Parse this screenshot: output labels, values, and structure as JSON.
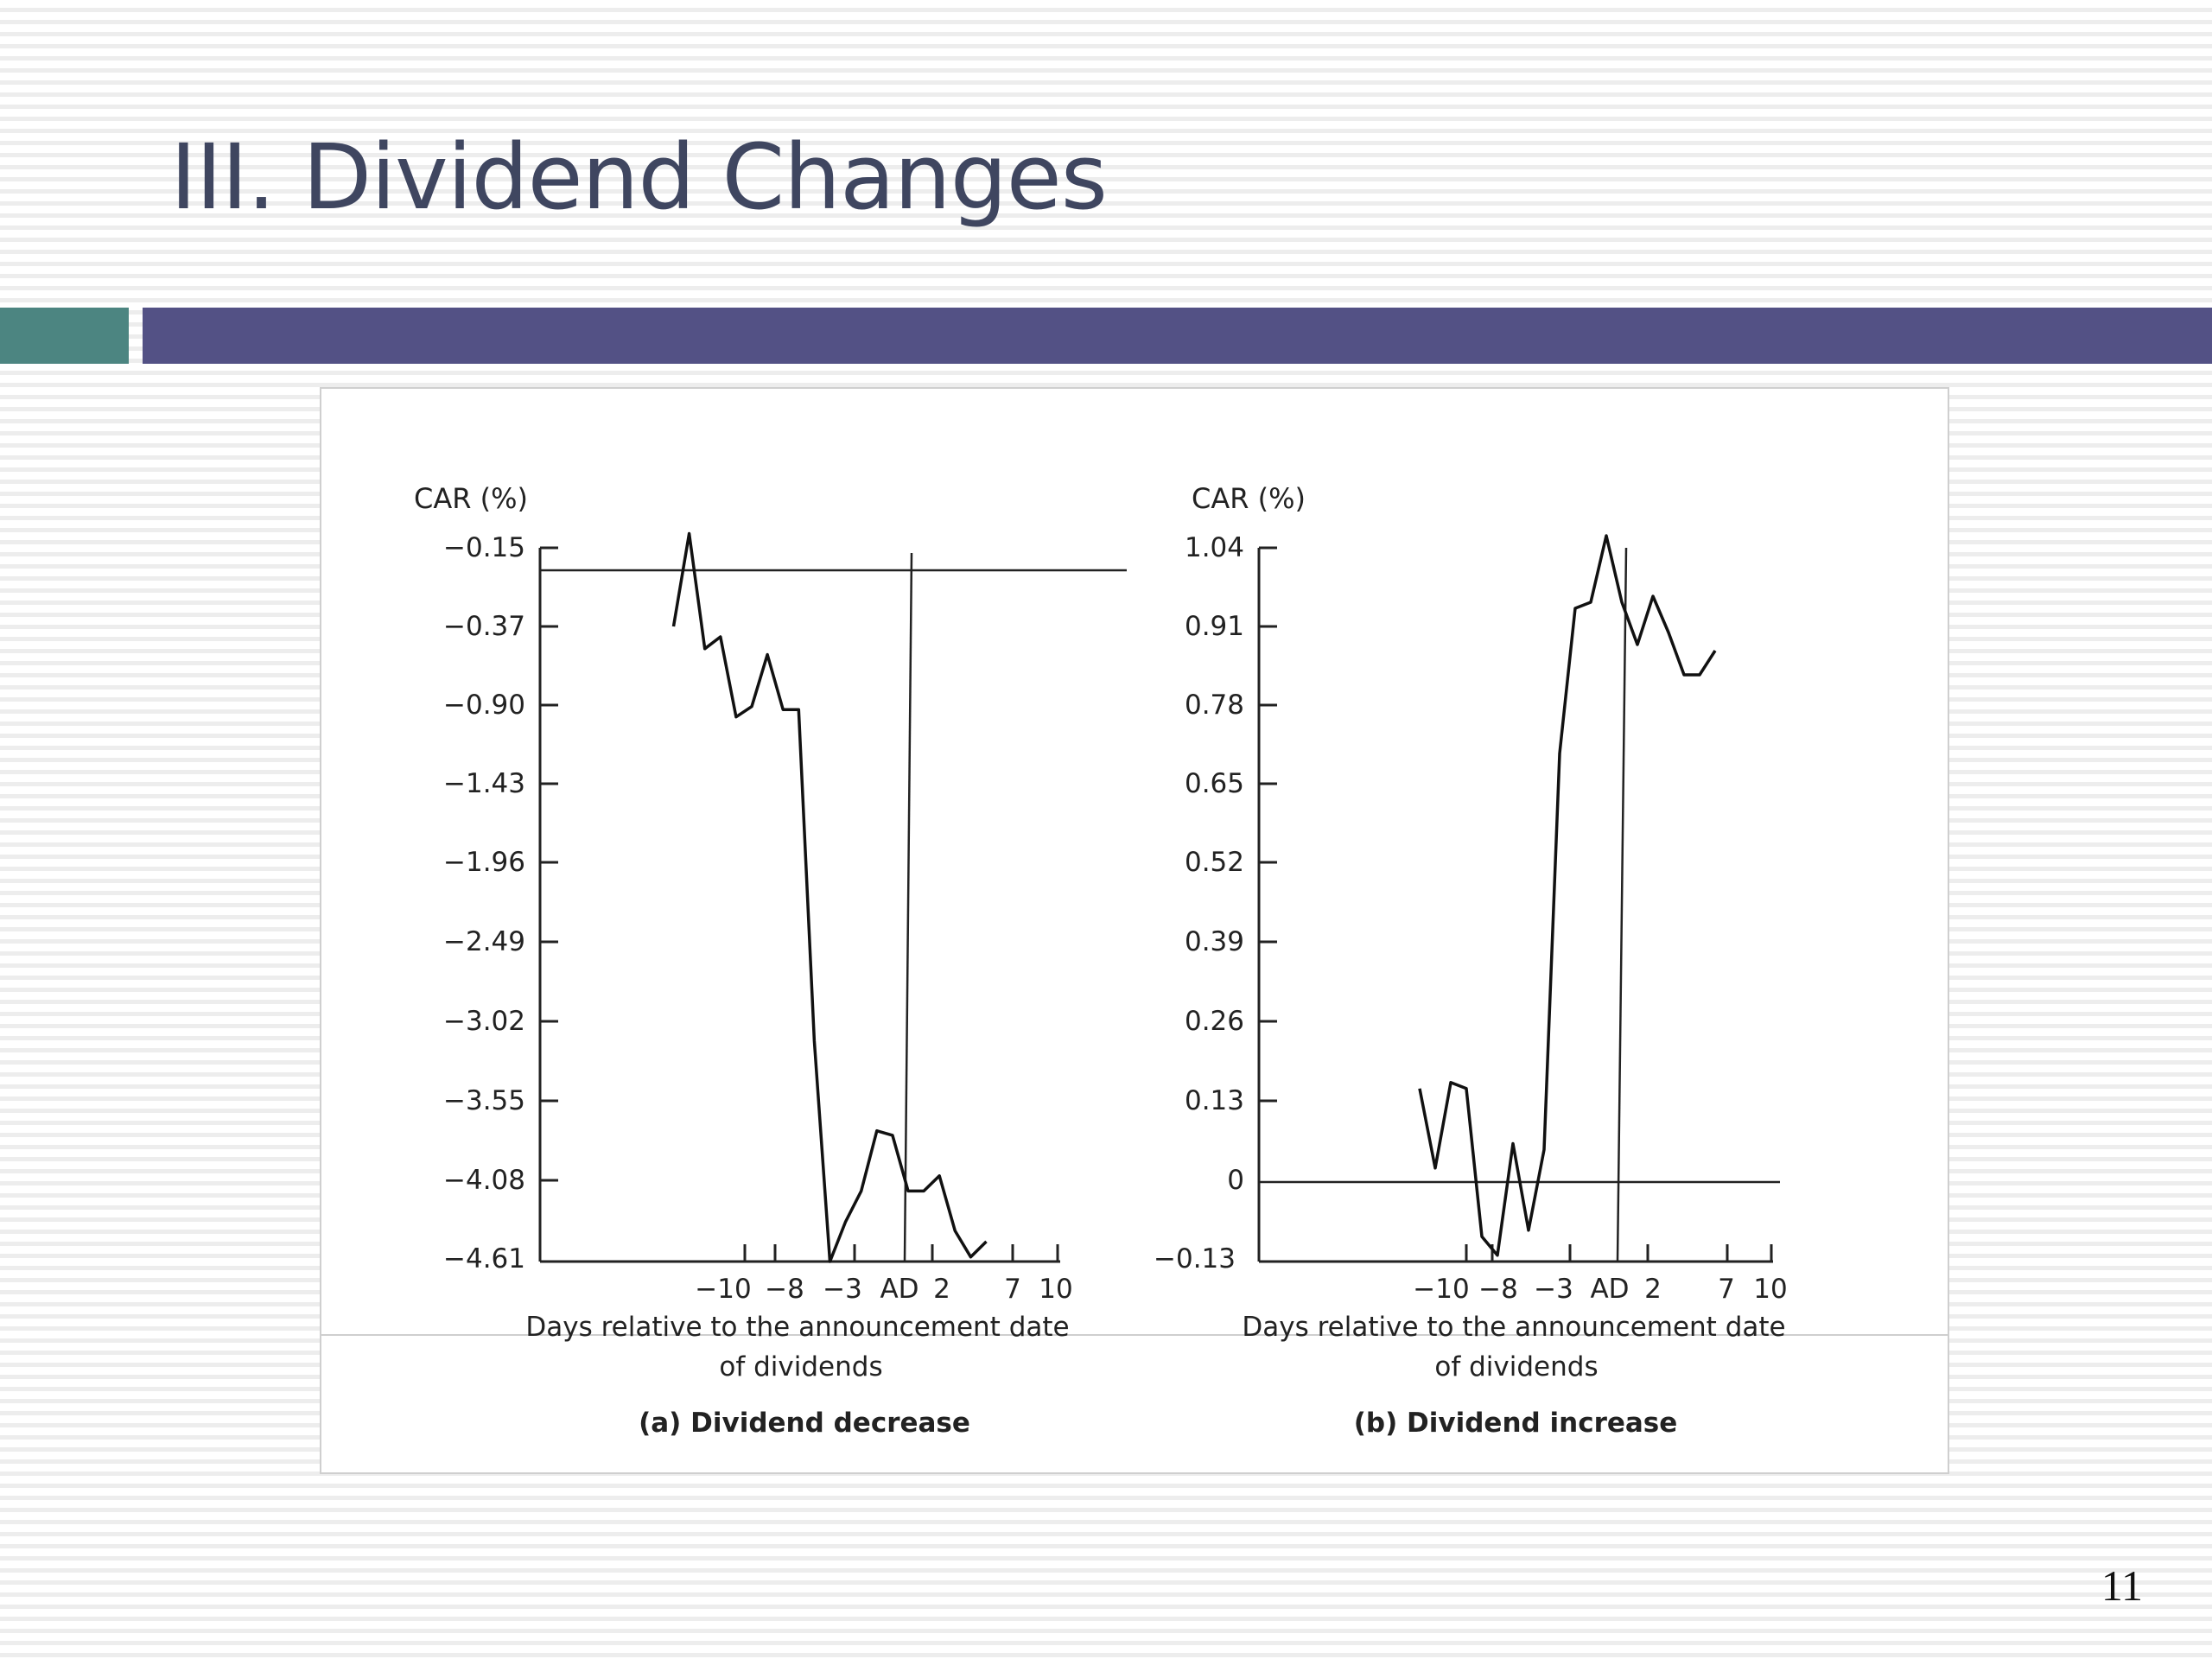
{
  "slide": {
    "title": "III. Dividend Changes",
    "page_number": "11",
    "colors": {
      "title": "#3f4660",
      "bar_teal": "#4c8581",
      "bar_purple": "#535185"
    }
  },
  "chart_data": [
    {
      "type": "line",
      "ylabel": "CAR (%)",
      "y_ticks": [
        "−0.15",
        "−0.37",
        "−0.90",
        "−1.43",
        "−1.96",
        "−2.49",
        "−3.02",
        "−3.55",
        "−4.08",
        "−4.61"
      ],
      "x_ticks": [
        "−10",
        "−8",
        "−3",
        "AD",
        "2",
        "7",
        "10"
      ],
      "xlabel_line1": "Days relative to the announcement date",
      "xlabel_line2": "of dividends",
      "caption": "(a) Dividend decrease",
      "reference_line_y": "−0.15",
      "series": [
        {
          "points": [
            [
              -15,
              -0.37
            ],
            [
              -14,
              -0.11
            ],
            [
              -13,
              -0.52
            ],
            [
              -12,
              -0.44
            ],
            [
              -11,
              -0.98
            ],
            [
              -10,
              -0.91
            ],
            [
              -9,
              -0.56
            ],
            [
              -8,
              -0.93
            ],
            [
              -7,
              -0.93
            ],
            [
              -6,
              -3.15
            ],
            [
              -5,
              -4.61
            ],
            [
              -4,
              -4.35
            ],
            [
              -3,
              -4.15
            ],
            [
              -2,
              -3.75
            ],
            [
              -1,
              -3.78
            ],
            [
              0,
              -4.15
            ],
            [
              1,
              -4.15
            ],
            [
              2,
              -4.05
            ],
            [
              3,
              -4.41
            ],
            [
              4,
              -4.58
            ],
            [
              5,
              -4.48
            ]
          ]
        }
      ]
    },
    {
      "type": "line",
      "ylabel": "CAR (%)",
      "y_ticks": [
        "1.04",
        "0.91",
        "0.78",
        "0.65",
        "0.52",
        "0.39",
        "0.26",
        "0.13",
        "0",
        "−0.13"
      ],
      "x_ticks": [
        "−10",
        "−8",
        "−3",
        "AD",
        "2",
        "7",
        "10"
      ],
      "xlabel_line1": "Days relative to the announcement date",
      "xlabel_line2": "of dividends",
      "caption": "(b) Dividend increase",
      "reference_line_y": "0",
      "series": [
        {
          "points": [
            [
              -13,
              0.15
            ],
            [
              -12,
              0.02
            ],
            [
              -11,
              0.16
            ],
            [
              -10,
              0.15
            ],
            [
              -9,
              -0.09
            ],
            [
              -8,
              -0.12
            ],
            [
              -7,
              0.06
            ],
            [
              -6,
              -0.08
            ],
            [
              -5,
              0.05
            ],
            [
              -4,
              0.7
            ],
            [
              -3,
              0.94
            ],
            [
              -2,
              0.95
            ],
            [
              -1,
              1.06
            ],
            [
              0,
              0.95
            ],
            [
              1,
              0.88
            ],
            [
              2,
              0.96
            ],
            [
              3,
              0.9
            ],
            [
              4,
              0.83
            ],
            [
              5,
              0.83
            ],
            [
              6,
              0.87
            ]
          ]
        }
      ]
    }
  ]
}
